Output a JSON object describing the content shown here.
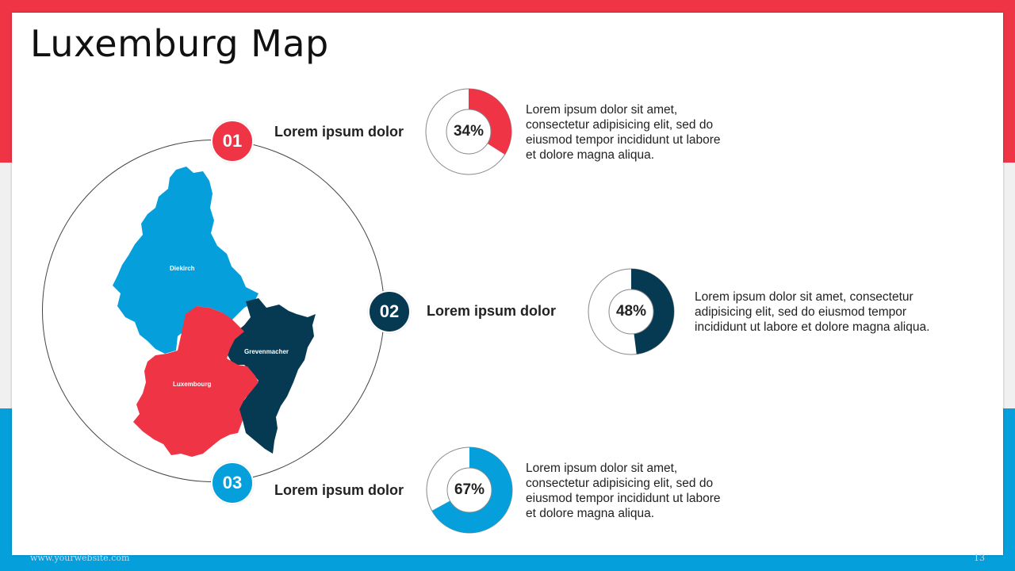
{
  "slide": {
    "title": "Luxemburg Map",
    "footer_url": "www.yourwebsite.com",
    "page_number": "13"
  },
  "colors": {
    "red": "#ef3446",
    "navy": "#063a52",
    "blue": "#05a0dc",
    "band_mid": "#f0f0f0"
  },
  "map": {
    "regions": [
      {
        "name": "Diekirch",
        "color": "#05a0dc"
      },
      {
        "name": "Grevenmacher",
        "color": "#063a52"
      },
      {
        "name": "Luxembourg",
        "color": "#ef3446"
      }
    ]
  },
  "items": [
    {
      "number": "01",
      "label": "Lorem ipsum dolor",
      "percent": "34%",
      "value": 0.34,
      "color": "#ef3446",
      "desc": [
        "Lorem ipsum dolor sit amet,",
        "consectetur adipisicing elit, sed do",
        "eiusmod tempor incididunt ut labore",
        "et dolore magna aliqua."
      ]
    },
    {
      "number": "02",
      "label": "Lorem ipsum dolor",
      "percent": "48%",
      "value": 0.48,
      "color": "#063a52",
      "desc": [
        "Lorem ipsum dolor sit amet, consectetur",
        "adipisicing elit, sed do eiusmod tempor",
        "incididunt ut labore et dolore magna aliqua."
      ]
    },
    {
      "number": "03",
      "label": "Lorem ipsum dolor",
      "percent": "67%",
      "value": 0.67,
      "color": "#05a0dc",
      "desc": [
        "Lorem ipsum dolor sit amet,",
        "consectetur adipisicing elit, sed do",
        "eiusmod tempor incididunt ut labore",
        "et dolore magna aliqua."
      ]
    }
  ]
}
